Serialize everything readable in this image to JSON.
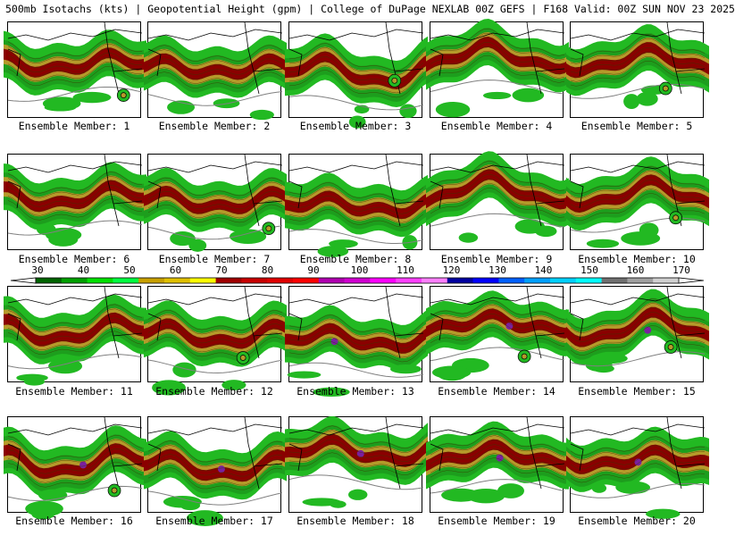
{
  "header": {
    "title": "500mb Isotachs (kts) | Geopotential Height (gpm) | College of DuPage NEXLAB   00Z GEFS | F168 Valid: 00Z SUN NOV 23 2025"
  },
  "colorbar": {
    "tick_labels": [
      "30",
      "40",
      "50",
      "60",
      "70",
      "80",
      "90",
      "100",
      "110",
      "120",
      "130",
      "140",
      "150",
      "160",
      "170"
    ],
    "colors": [
      "#006400",
      "#00a000",
      "#00e000",
      "#00ff40",
      "#c8a000",
      "#e0c000",
      "#ffff00",
      "#a00000",
      "#c80000",
      "#e00000",
      "#ff0000",
      "#b000b0",
      "#d000d0",
      "#ff00ff",
      "#ff40ff",
      "#ff80ff",
      "#0000a0",
      "#0000ff",
      "#0060ff",
      "#00a0ff",
      "#00d0ff",
      "#00ffff",
      "#707070",
      "#a0a0a0",
      "#d0d0d0"
    ]
  },
  "panels": [
    {
      "caption": "Ensemble Member: 1"
    },
    {
      "caption": "Ensemble Member: 2"
    },
    {
      "caption": "Ensemble Member: 3"
    },
    {
      "caption": "Ensemble Member: 4"
    },
    {
      "caption": "Ensemble Member: 5"
    },
    {
      "caption": "Ensemble Member: 6"
    },
    {
      "caption": "Ensemble Member: 7"
    },
    {
      "caption": "Ensemble Member: 8"
    },
    {
      "caption": "Ensemble Member: 9"
    },
    {
      "caption": "Ensemble Member: 10"
    },
    {
      "caption": "Ensemble Member: 11"
    },
    {
      "caption": "Ensemble Member: 12"
    },
    {
      "caption": "Ensemble Member: 13"
    },
    {
      "caption": "Ensemble Member: 14"
    },
    {
      "caption": "Ensemble Member: 15"
    },
    {
      "caption": "Ensemble Member: 16"
    },
    {
      "caption": "Ensemble Member: 17"
    },
    {
      "caption": "Ensemble Member: 18"
    },
    {
      "caption": "Ensemble Member: 19"
    },
    {
      "caption": "Ensemble Member: 20"
    }
  ]
}
